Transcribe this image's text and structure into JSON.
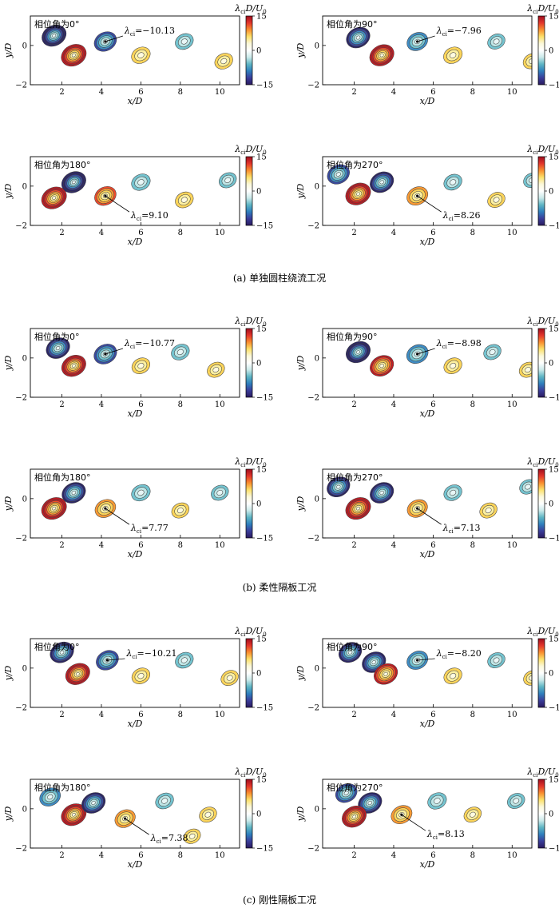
{
  "colorbar": {
    "label_main": "λ",
    "label_sub": "ci",
    "label_rest": "D/U",
    "label_sub2": "0",
    "ticks": [
      "15",
      "0",
      "−15"
    ],
    "stops": [
      "#9e0d1e",
      "#e3352b",
      "#f98e2f",
      "#fde16a",
      "#fbf8d9",
      "#ffffff",
      "#cbeaea",
      "#5fb6c4",
      "#2f7fbd",
      "#3a3d9a",
      "#2a1a5e"
    ]
  },
  "axes": {
    "xlabel": "x/D",
    "ylabel": "y/D",
    "xticks": [
      "2",
      "4",
      "6",
      "8",
      "10"
    ],
    "yticks": [
      "0",
      "−2"
    ]
  },
  "chart_data": {
    "type": "heatmap",
    "x_range": [
      0.4,
      11
    ],
    "y_range": [
      -2,
      1.5
    ],
    "colorbar_range": [
      -15,
      15
    ],
    "groups": [
      {
        "caption": "(a) 单独圆柱绕流工况",
        "panels": [
          {
            "phase": "相位角为0°",
            "annotation": {
              "symbol": "λ",
              "sub": "ci",
              "text": "=−10.13",
              "x": 4.2,
              "y": 0.2
            },
            "vortices": [
              [
                1.6,
                0.5,
                -13
              ],
              [
                2.6,
                -0.5,
                14
              ],
              [
                4.2,
                0.2,
                -10.13
              ],
              [
                6.0,
                -0.5,
                5
              ],
              [
                8.2,
                0.2,
                -4
              ],
              [
                10.2,
                -0.8,
                4
              ]
            ]
          },
          {
            "phase": "相位角为90°",
            "annotation": {
              "symbol": "λ",
              "sub": "ci",
              "text": "=−7.96",
              "x": 5.2,
              "y": 0.2
            },
            "vortices": [
              [
                2.2,
                0.4,
                -12
              ],
              [
                3.4,
                -0.5,
                13
              ],
              [
                5.2,
                0.2,
                -7.96
              ],
              [
                7.0,
                -0.5,
                5
              ],
              [
                9.2,
                0.2,
                -3
              ],
              [
                11.0,
                -0.8,
                3
              ]
            ]
          },
          {
            "phase": "相位角为180°",
            "annotation": {
              "symbol": "λ",
              "sub": "ci",
              "text": "=9.10",
              "x": 4.2,
              "y": -0.5
            },
            "vortices": [
              [
                1.6,
                -0.6,
                14
              ],
              [
                2.6,
                0.2,
                -13
              ],
              [
                4.2,
                -0.5,
                9.1
              ],
              [
                6.0,
                0.2,
                -5
              ],
              [
                8.2,
                -0.7,
                4
              ],
              [
                10.4,
                0.3,
                -3
              ]
            ]
          },
          {
            "phase": "相位角为270°",
            "annotation": {
              "symbol": "λ",
              "sub": "ci",
              "text": "=8.26",
              "x": 5.2,
              "y": -0.5
            },
            "vortices": [
              [
                1.2,
                0.6,
                -10
              ],
              [
                2.2,
                -0.4,
                14
              ],
              [
                3.4,
                0.2,
                -12
              ],
              [
                5.2,
                -0.5,
                8.26
              ],
              [
                7.0,
                0.2,
                -4
              ],
              [
                9.2,
                -0.7,
                3
              ],
              [
                11.0,
                0.3,
                -2
              ]
            ]
          }
        ]
      },
      {
        "caption": "(b) 柔性隔板工况",
        "panels": [
          {
            "phase": "相位角为0°",
            "annotation": {
              "symbol": "λ",
              "sub": "ci",
              "text": "=−10.77",
              "x": 4.2,
              "y": 0.2
            },
            "vortices": [
              [
                1.8,
                0.5,
                -12
              ],
              [
                2.6,
                -0.4,
                13
              ],
              [
                4.2,
                0.2,
                -10.77
              ],
              [
                6.0,
                -0.4,
                4
              ],
              [
                8.0,
                0.3,
                -4
              ],
              [
                9.8,
                -0.6,
                3
              ]
            ]
          },
          {
            "phase": "相位角为90°",
            "annotation": {
              "symbol": "λ",
              "sub": "ci",
              "text": "=−8.98",
              "x": 5.2,
              "y": 0.2
            },
            "vortices": [
              [
                2.2,
                0.3,
                -13
              ],
              [
                3.4,
                -0.4,
                12
              ],
              [
                5.2,
                0.2,
                -8.98
              ],
              [
                7.0,
                -0.4,
                4
              ],
              [
                9.0,
                0.3,
                -3
              ],
              [
                10.8,
                -0.6,
                3
              ]
            ]
          },
          {
            "phase": "相位角为180°",
            "annotation": {
              "symbol": "λ",
              "sub": "ci",
              "text": "=7.77",
              "x": 4.2,
              "y": -0.5
            },
            "vortices": [
              [
                1.6,
                -0.5,
                14
              ],
              [
                2.6,
                0.3,
                -12
              ],
              [
                4.2,
                -0.5,
                7.77
              ],
              [
                6.0,
                0.3,
                -5
              ],
              [
                8.0,
                -0.6,
                3
              ],
              [
                10.0,
                0.3,
                -3
              ]
            ]
          },
          {
            "phase": "相位角为270°",
            "annotation": {
              "symbol": "λ",
              "sub": "ci",
              "text": "=7.13",
              "x": 5.2,
              "y": -0.5
            },
            "vortices": [
              [
                1.2,
                0.6,
                -11
              ],
              [
                2.2,
                -0.5,
                14
              ],
              [
                3.4,
                0.3,
                -12
              ],
              [
                5.2,
                -0.5,
                7.13
              ],
              [
                7.0,
                0.3,
                -4
              ],
              [
                8.8,
                -0.6,
                3
              ],
              [
                10.8,
                0.6,
                -2
              ]
            ]
          }
        ]
      },
      {
        "caption": "(c) 刚性隔板工况",
        "panels": [
          {
            "phase": "相位角为0°",
            "annotation": {
              "symbol": "λ",
              "sub": "ci",
              "text": "=−10.21",
              "x": 4.3,
              "y": 0.4
            },
            "vortices": [
              [
                2.0,
                0.8,
                -12
              ],
              [
                2.8,
                -0.3,
                13
              ],
              [
                4.3,
                0.4,
                -10.21
              ],
              [
                6.0,
                -0.4,
                4
              ],
              [
                8.2,
                0.4,
                -4
              ],
              [
                10.5,
                -0.5,
                3
              ]
            ]
          },
          {
            "phase": "相位角为90°",
            "annotation": {
              "symbol": "λ",
              "sub": "ci",
              "text": "=−8.20",
              "x": 5.2,
              "y": 0.4
            },
            "vortices": [
              [
                1.8,
                0.8,
                -11
              ],
              [
                3.0,
                0.3,
                -12
              ],
              [
                3.6,
                -0.3,
                12
              ],
              [
                5.2,
                0.4,
                -8.2
              ],
              [
                7.0,
                -0.4,
                4
              ],
              [
                9.2,
                0.4,
                -3
              ],
              [
                11.0,
                -0.5,
                2
              ]
            ]
          },
          {
            "phase": "相位角为180°",
            "annotation": {
              "symbol": "λ",
              "sub": "ci",
              "text": "=7.38",
              "x": 5.2,
              "y": -0.5
            },
            "vortices": [
              [
                1.4,
                0.6,
                -8
              ],
              [
                2.6,
                -0.3,
                14
              ],
              [
                3.6,
                0.3,
                -12
              ],
              [
                5.2,
                -0.5,
                7.38
              ],
              [
                7.2,
                0.4,
                -4
              ],
              [
                9.4,
                -0.3,
                3
              ],
              [
                8.6,
                -1.4,
                2
              ]
            ]
          },
          {
            "phase": "相位角为270°",
            "annotation": {
              "symbol": "λ",
              "sub": "ci",
              "text": "=8.13",
              "x": 4.4,
              "y": -0.3
            },
            "vortices": [
              [
                1.6,
                0.8,
                -9
              ],
              [
                2.8,
                0.3,
                -12
              ],
              [
                2.0,
                -0.4,
                13
              ],
              [
                4.4,
                -0.3,
                8.13
              ],
              [
                6.2,
                0.4,
                -5
              ],
              [
                8.0,
                -0.3,
                3
              ],
              [
                10.2,
                0.4,
                -3
              ]
            ]
          }
        ]
      }
    ]
  }
}
